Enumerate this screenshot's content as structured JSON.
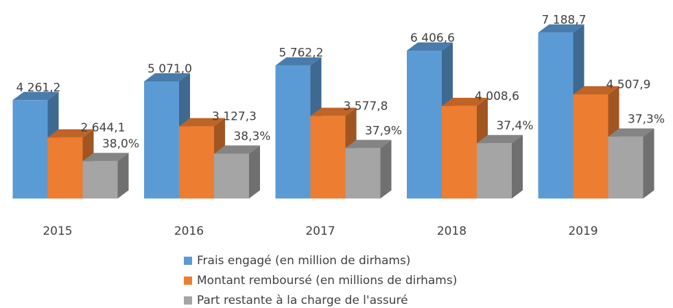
{
  "chart_data": {
    "type": "bar3d",
    "categories": [
      "2015",
      "2016",
      "2017",
      "2018",
      "2019"
    ],
    "ylim": [
      0,
      8600
    ],
    "series": [
      {
        "name": "Frais engagé (en million de dirhams)",
        "color": "#5b9bd5",
        "values": [
          4261.2,
          5071.0,
          5762.2,
          6406.6,
          7188.7
        ],
        "value_labels": [
          "4 261,2",
          "5 071,0",
          "5 762,2",
          "6 406,6",
          "7 188,7"
        ]
      },
      {
        "name": "Montant remboursé (en millions de dirhams)",
        "color": "#ed7d31",
        "values": [
          2644.1,
          3127.3,
          3577.8,
          4008.6,
          4507.9
        ],
        "value_labels": [
          "2 644,1",
          "3 127,3",
          "3 577,8",
          "4 008,6",
          "4 507,9"
        ]
      },
      {
        "name": "Part restante à la charge de l'assuré",
        "color": "#a5a5a5",
        "values": [
          38.0,
          38.3,
          37.9,
          37.4,
          37.3
        ],
        "value_labels": [
          "38,0%",
          "38,3%",
          "37,9%",
          "37,4%",
          "37,3%"
        ]
      }
    ]
  }
}
